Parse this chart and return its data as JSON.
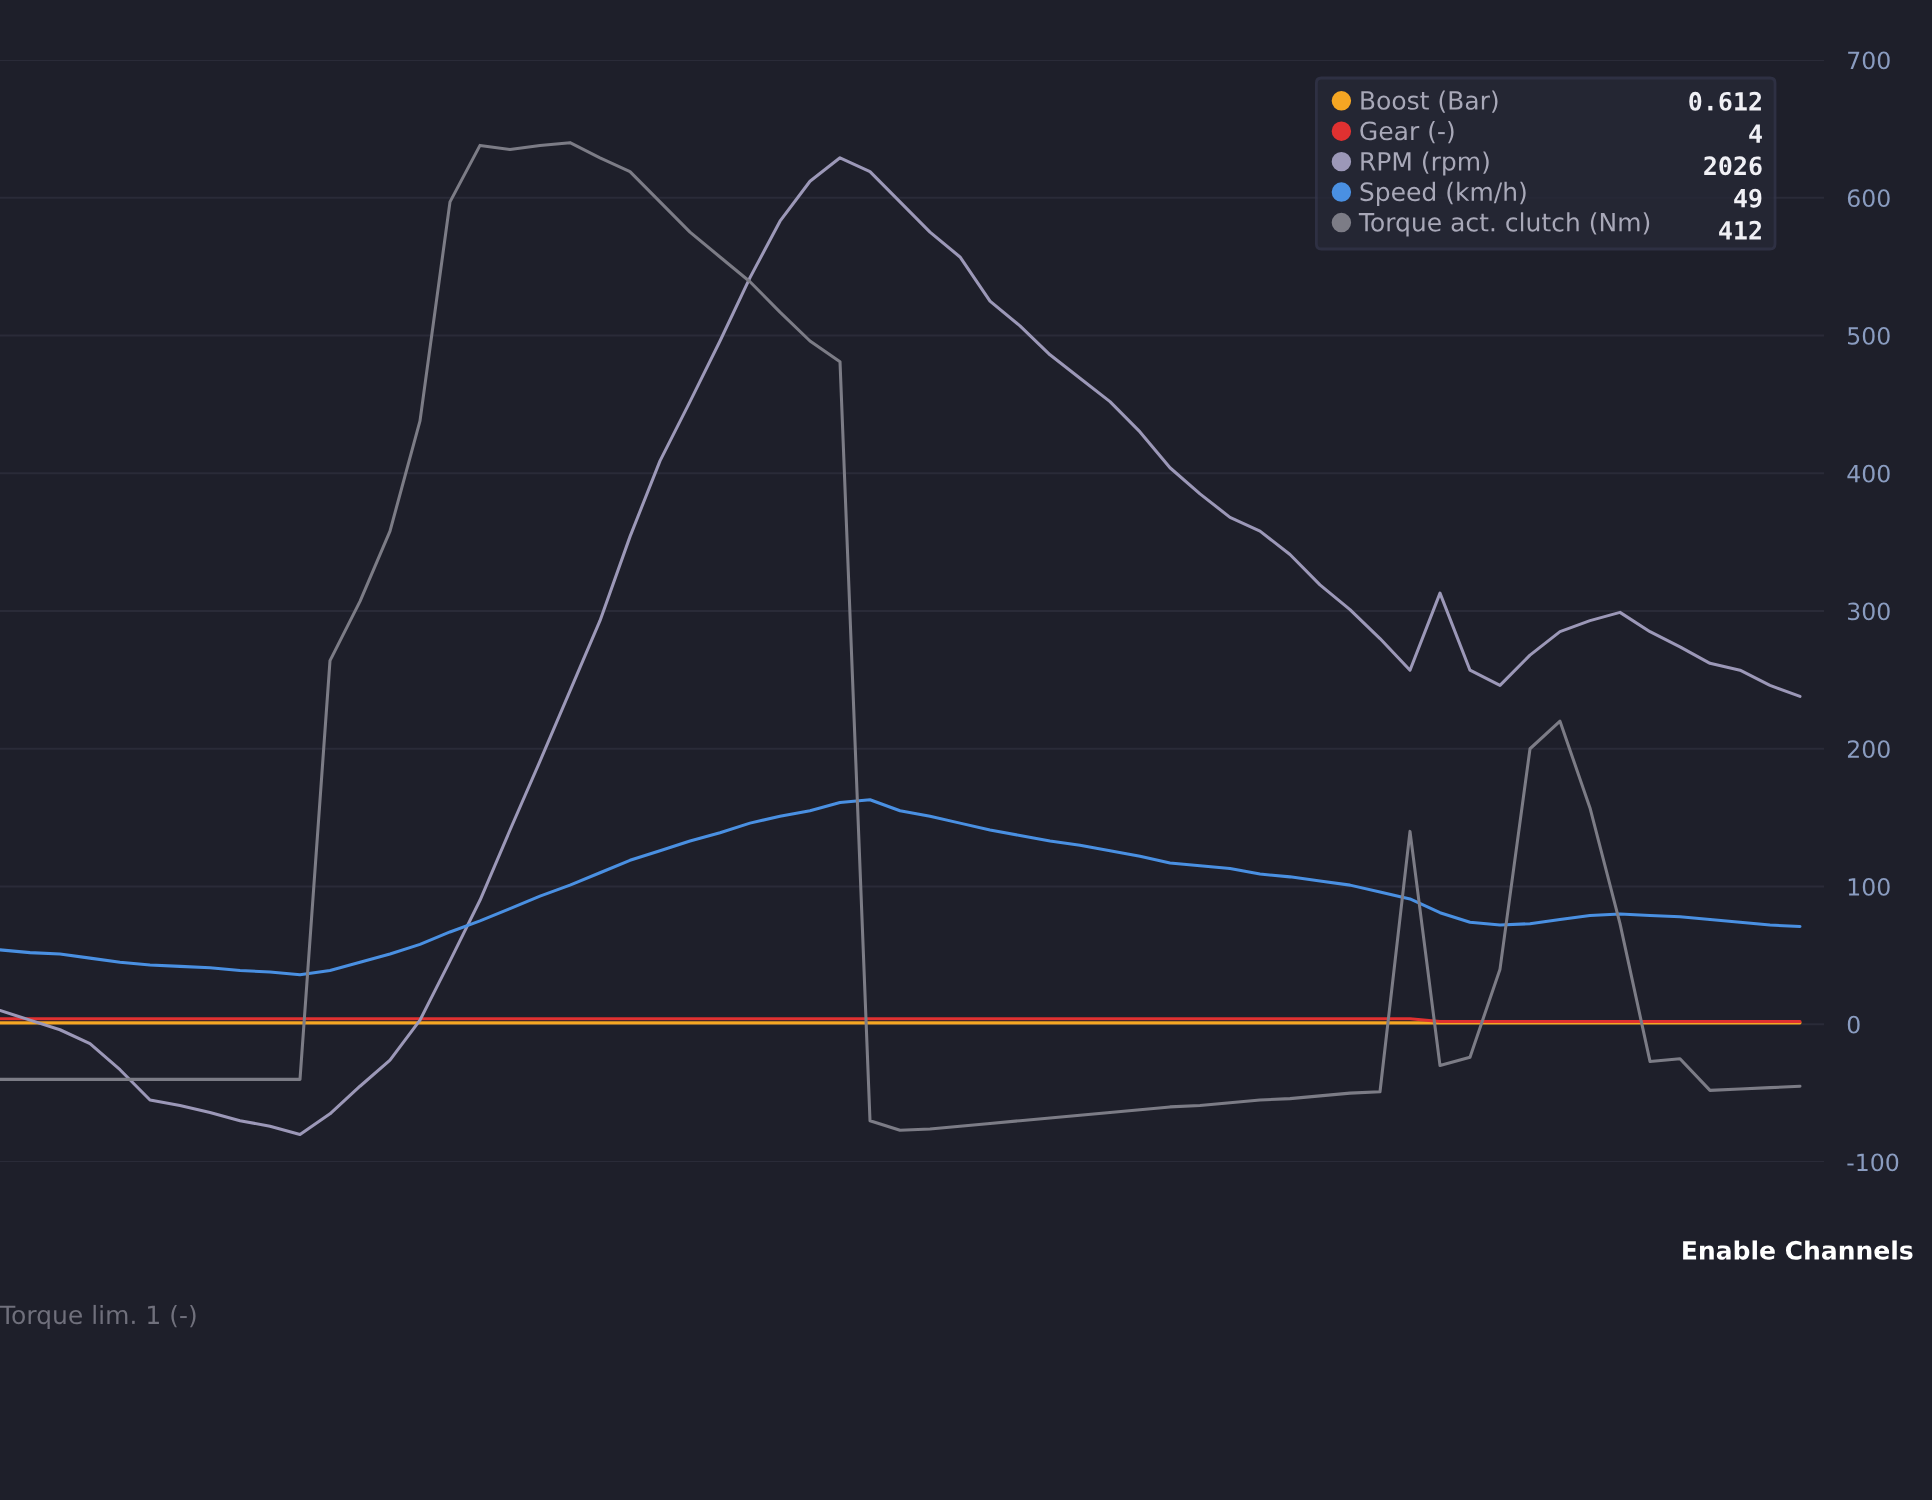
{
  "chart_data": {
    "type": "line",
    "categories": [
      null,
      null,
      null,
      null,
      null,
      null,
      null,
      null,
      null,
      null,
      null,
      null,
      null,
      null,
      null,
      null,
      null,
      null,
      null,
      null,
      null,
      null,
      null,
      null,
      null,
      null,
      null,
      null,
      null,
      null,
      null,
      null,
      null,
      null,
      null,
      null,
      null,
      null,
      null,
      null,
      null,
      null,
      null,
      null,
      null,
      null,
      null,
      null,
      null,
      null,
      null,
      null,
      null,
      null,
      null,
      null,
      null,
      null,
      null,
      null,
      null
    ],
    "series": [
      {
        "name": "Boost (Bar)",
        "color": "#f5a623",
        "values": [
          1,
          1,
          1,
          1,
          1,
          1,
          1,
          1,
          1,
          1,
          1,
          1,
          1,
          1,
          1,
          1,
          1,
          1,
          1,
          1,
          1,
          1,
          1,
          1,
          1,
          1,
          1,
          1,
          1,
          1,
          1,
          1,
          1,
          1,
          1,
          1,
          1,
          1,
          1,
          1,
          1,
          1,
          1,
          1,
          1,
          1,
          1,
          1,
          1,
          1,
          1,
          1,
          1,
          1,
          1,
          1,
          1,
          1,
          1,
          1,
          1
        ]
      },
      {
        "name": "Gear (-)",
        "color": "#e03131",
        "values": [
          4,
          4,
          4,
          4,
          4,
          4,
          4,
          4,
          4,
          4,
          4,
          4,
          4,
          4,
          4,
          4,
          4,
          4,
          4,
          4,
          4,
          4,
          4,
          4,
          4,
          4,
          4,
          4,
          4,
          4,
          4,
          4,
          4,
          4,
          4,
          4,
          4,
          4,
          4,
          4,
          4,
          4,
          4,
          4,
          4,
          4,
          4,
          4,
          2,
          2,
          2,
          2,
          2,
          2,
          2,
          2,
          2,
          2,
          2,
          2,
          2
        ]
      },
      {
        "name": "RPM (rpm)",
        "color": "#9c98b8",
        "values": [
          10,
          3,
          -4,
          -14,
          -33,
          -55,
          -59,
          -64,
          -70,
          -74,
          -80,
          -65,
          -45,
          -26,
          3,
          46,
          90,
          141,
          191,
          242,
          293,
          354,
          409,
          452,
          496,
          542,
          583,
          612,
          629,
          619,
          597,
          575,
          557,
          525,
          507,
          486,
          469,
          452,
          430,
          404,
          385,
          368,
          358,
          341,
          319,
          301,
          280,
          257,
          313,
          257,
          246,
          268,
          285,
          293,
          299,
          285,
          274,
          262,
          257,
          246,
          238
        ]
      },
      {
        "name": "Speed (km/h)",
        "color": "#4a90e2",
        "values": [
          54,
          52,
          51,
          48,
          45,
          43,
          42,
          41,
          39,
          38,
          36,
          39,
          45,
          51,
          58,
          67,
          75,
          84,
          93,
          101,
          110,
          119,
          126,
          133,
          139,
          146,
          151,
          155,
          161,
          163,
          155,
          151,
          146,
          141,
          137,
          133,
          130,
          126,
          122,
          117,
          115,
          113,
          109,
          107,
          104,
          101,
          96,
          91,
          81,
          74,
          72,
          73,
          76,
          79,
          80,
          79,
          78,
          76,
          74,
          72,
          71
        ]
      },
      {
        "name": "Torque act. clutch (Nm)",
        "color": "#7c7c86",
        "values": [
          -40,
          -40,
          -40,
          -40,
          -40,
          -40,
          -40,
          -40,
          -40,
          -40,
          -40,
          264,
          307,
          358,
          438,
          597,
          638,
          635,
          638,
          640,
          629,
          619,
          597,
          575,
          557,
          539,
          517,
          496,
          481,
          -70,
          -77,
          -76,
          -74,
          -72,
          -70,
          -68,
          -66,
          -64,
          -62,
          -60,
          -59,
          -57,
          -55,
          -54,
          -52,
          -50,
          -49,
          140,
          -30,
          -24,
          40,
          200,
          220,
          157,
          73,
          -27,
          -25,
          -48,
          -47,
          -46,
          -45
        ]
      }
    ],
    "ylim": [
      -100,
      700
    ],
    "yticks": [
      -100,
      0,
      100,
      200,
      300,
      400,
      500,
      600,
      700
    ],
    "grid": "y",
    "legend": "top right",
    "annotations": [
      "0.612",
      "4",
      "2026",
      "49",
      "412",
      "Enable Channels",
      "Torque lim. 1 (-)"
    ]
  }
}
